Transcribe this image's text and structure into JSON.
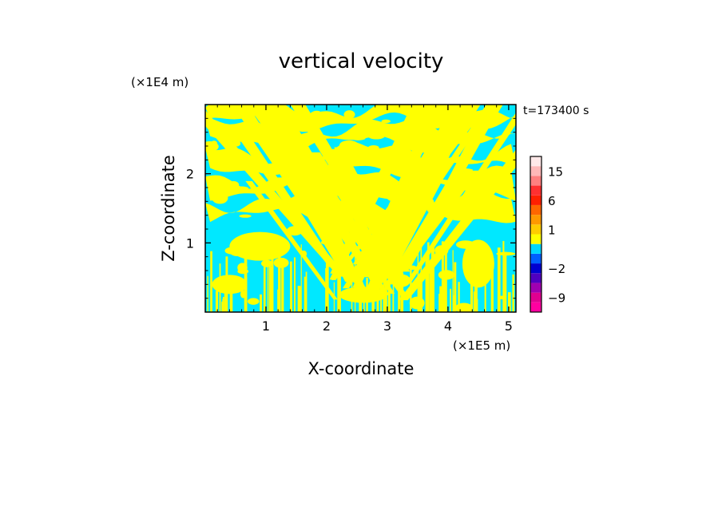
{
  "chart_data": {
    "type": "heatmap",
    "title": "vertical velocity",
    "xlabel": "X-coordinate",
    "ylabel": "Z-coordinate",
    "x_unit": "(×1E5 m)",
    "y_unit": "(×1E4 m)",
    "time_label": "t=173400 s",
    "xlim": [
      0,
      5.12
    ],
    "ylim": [
      0,
      3.0
    ],
    "x_ticks": [
      1,
      2,
      3,
      4,
      5
    ],
    "x_tick_labels": [
      "1",
      "2",
      "3",
      "4",
      "5"
    ],
    "y_ticks": [
      1,
      2
    ],
    "y_tick_labels": [
      "1",
      "2"
    ],
    "fill_colors": {
      "positive": "#ffff00",
      "negative": "#00e8ff"
    },
    "colorbar": {
      "labels": [
        {
          "value": 15,
          "text": "15"
        },
        {
          "value": 6,
          "text": "6"
        },
        {
          "value": 1,
          "text": "1"
        },
        {
          "value": -2,
          "text": "−2"
        },
        {
          "value": -9,
          "text": "−9"
        }
      ],
      "levels": [
        {
          "value": -12,
          "color": "#ff00a0"
        },
        {
          "value": -9,
          "color": "#e00090"
        },
        {
          "value": -6,
          "color": "#a000b0"
        },
        {
          "value": -4,
          "color": "#5000c0"
        },
        {
          "value": -2,
          "color": "#0000d0"
        },
        {
          "value": -1,
          "color": "#0060ff"
        },
        {
          "value": 0,
          "color": "#00d8ff"
        },
        {
          "value": 0.5,
          "color": "#ffff00"
        },
        {
          "value": 1,
          "color": "#ffcc00"
        },
        {
          "value": 2,
          "color": "#ff9900"
        },
        {
          "value": 4,
          "color": "#ff6600"
        },
        {
          "value": 6,
          "color": "#ff2000"
        },
        {
          "value": 9,
          "color": "#ff3030"
        },
        {
          "value": 12,
          "color": "#ff8080"
        },
        {
          "value": 15,
          "color": "#ffb8b8"
        },
        {
          "value": 20,
          "color": "#ffe8e8"
        }
      ]
    }
  }
}
